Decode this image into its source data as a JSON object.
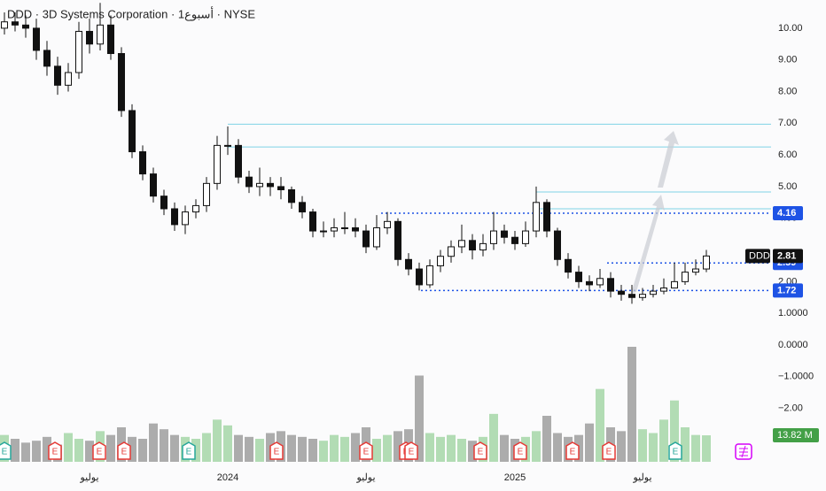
{
  "chart_data": {
    "type": "candlestick",
    "title": "DDD · 3D Systems Corporation · 1أسبوع · NYSE",
    "symbol": "DDD",
    "categories": [
      null,
      null,
      null,
      null,
      null,
      null,
      null,
      null,
      "يوليو",
      null,
      null,
      null,
      null,
      null,
      null,
      null,
      null,
      null,
      null,
      null,
      null,
      "2024",
      null,
      null,
      null,
      null,
      null,
      null,
      null,
      null,
      null,
      null,
      null,
      null,
      "يوليو",
      null,
      null,
      null,
      null,
      null,
      null,
      null,
      null,
      null,
      null,
      null,
      null,
      null,
      "2025",
      null,
      null,
      null,
      null,
      null,
      null,
      null,
      null,
      null,
      null,
      null,
      "يوليو",
      null,
      null,
      null,
      null,
      null,
      null
    ],
    "open": [
      10.0,
      10.2,
      10.1,
      10.0,
      9.3,
      8.8,
      8.2,
      8.6,
      9.9,
      9.5,
      10.1,
      9.2,
      7.4,
      6.1,
      5.4,
      4.7,
      4.3,
      3.8,
      4.2,
      4.4,
      5.1,
      6.3,
      6.3,
      5.3,
      5.0,
      5.1,
      5.0,
      4.9,
      4.5,
      4.2,
      3.6,
      3.6,
      3.7,
      3.7,
      3.6,
      3.1,
      3.7,
      3.9,
      2.7,
      2.4,
      1.9,
      2.5,
      2.8,
      3.1,
      3.3,
      3.0,
      3.2,
      3.6,
      3.4,
      3.2,
      3.6,
      4.5,
      3.6,
      2.7,
      2.3,
      2.0,
      1.9,
      2.1,
      1.7,
      1.6,
      1.5,
      1.6,
      1.7,
      1.8,
      2.0,
      2.3,
      2.4
    ],
    "high": [
      10.5,
      10.5,
      10.4,
      10.3,
      9.6,
      9.1,
      8.9,
      10.2,
      10.3,
      10.8,
      10.4,
      9.4,
      7.6,
      6.3,
      5.6,
      4.9,
      4.5,
      4.4,
      4.6,
      5.3,
      6.6,
      6.9,
      6.5,
      5.5,
      5.6,
      5.3,
      5.3,
      5.0,
      4.7,
      4.3,
      3.9,
      4.0,
      4.2,
      4.0,
      3.8,
      4.1,
      4.2,
      4.0,
      2.9,
      2.6,
      2.7,
      3.0,
      3.3,
      3.8,
      3.5,
      3.5,
      4.2,
      3.8,
      3.6,
      3.9,
      5.0,
      4.6,
      3.7,
      2.9,
      2.5,
      2.2,
      2.4,
      2.3,
      1.9,
      1.9,
      1.8,
      1.9,
      2.1,
      2.6,
      2.6,
      2.7,
      3.0
    ],
    "low": [
      9.8,
      9.9,
      9.7,
      9.0,
      8.5,
      7.9,
      8.0,
      8.4,
      9.2,
      9.3,
      9.0,
      7.2,
      5.9,
      5.2,
      4.5,
      4.1,
      3.6,
      3.5,
      4.0,
      4.2,
      4.9,
      6.0,
      5.1,
      4.8,
      4.7,
      4.7,
      4.6,
      4.3,
      4.0,
      3.4,
      3.4,
      3.4,
      3.5,
      3.4,
      2.9,
      3.0,
      3.5,
      2.5,
      2.2,
      1.72,
      1.8,
      2.3,
      2.6,
      2.9,
      2.7,
      2.8,
      3.0,
      3.2,
      3.0,
      3.1,
      3.4,
      3.4,
      2.5,
      2.1,
      1.8,
      1.7,
      1.8,
      1.5,
      1.4,
      1.3,
      1.4,
      1.5,
      1.6,
      1.8,
      1.9,
      2.2,
      2.3
    ],
    "close": [
      10.2,
      10.1,
      10.0,
      9.3,
      8.8,
      8.2,
      8.6,
      9.9,
      9.5,
      10.1,
      9.2,
      7.4,
      6.1,
      5.4,
      4.7,
      4.3,
      3.8,
      4.2,
      4.4,
      5.1,
      6.3,
      6.3,
      5.3,
      5.0,
      5.1,
      5.0,
      4.9,
      4.5,
      4.2,
      3.6,
      3.6,
      3.7,
      3.7,
      3.6,
      3.1,
      3.7,
      3.9,
      2.7,
      2.4,
      1.9,
      2.5,
      2.8,
      3.1,
      3.3,
      3.0,
      3.2,
      3.6,
      3.4,
      3.2,
      3.6,
      4.5,
      3.6,
      2.7,
      2.3,
      2.0,
      1.9,
      2.1,
      1.7,
      1.6,
      1.5,
      1.6,
      1.7,
      1.8,
      2.0,
      2.3,
      2.4,
      2.81
    ],
    "volume": [
      14,
      12,
      10,
      11,
      13,
      9,
      15,
      12,
      11,
      16,
      14,
      18,
      13,
      12,
      20,
      17,
      14,
      13,
      12,
      15,
      22,
      19,
      14,
      13,
      12,
      15,
      16,
      14,
      13,
      12,
      11,
      14,
      13,
      15,
      18,
      12,
      14,
      16,
      17,
      45,
      15,
      13,
      14,
      12,
      11,
      13,
      25,
      14,
      12,
      13,
      16,
      24,
      15,
      13,
      14,
      20,
      38,
      18,
      16,
      60,
      17,
      15,
      22,
      32,
      18,
      14,
      13.82
    ],
    "ylim": [
      -3.91,
      10.89
    ],
    "yticks": [
      {
        "value": 10,
        "label": "10.00"
      },
      {
        "value": 9,
        "label": "9.00"
      },
      {
        "value": 8,
        "label": "8.00"
      },
      {
        "value": 7,
        "label": "7.00"
      },
      {
        "value": 6,
        "label": "6.00"
      },
      {
        "value": 5,
        "label": "5.00"
      },
      {
        "value": 4,
        "label": "4.00"
      },
      {
        "value": 2,
        "label": "2.00"
      },
      {
        "value": 1,
        "label": "1.0000"
      },
      {
        "value": 0,
        "label": "0.0000"
      },
      {
        "value": -1,
        "label": "−1.0000"
      },
      {
        "value": -2,
        "label": "−2.00"
      }
    ],
    "volume_lim": [
      0,
      60
    ],
    "volume_tag": {
      "value": 13.82,
      "label": "13.82 M"
    },
    "last_price": 2.81,
    "resistance_lines": [
      6.97,
      6.25,
      4.83,
      4.3
    ],
    "dotted_levels": [
      4.16,
      2.59,
      1.72
    ],
    "earnings_marker": "E",
    "up_color": "#a5d6a7",
    "down_color": "#9e9e9e",
    "line_color": "#7fd3e6",
    "level_color": "#1e53e5"
  }
}
